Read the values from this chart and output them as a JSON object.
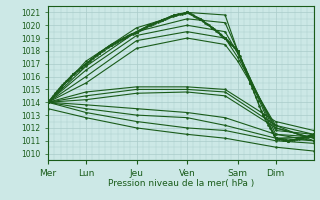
{
  "bg_color": "#cce8e6",
  "grid_color": "#aaccca",
  "line_color": "#1a5c1a",
  "ylabel_text": "Pression niveau de la mer( hPa )",
  "x_labels": [
    "Mer",
    "Lun",
    "Jeu",
    "Ven",
    "Sam",
    "Dim"
  ],
  "x_positions": [
    0,
    36,
    84,
    132,
    180,
    216
  ],
  "ylim": [
    1009.5,
    1021.5
  ],
  "yticks": [
    1010,
    1011,
    1012,
    1013,
    1014,
    1015,
    1016,
    1017,
    1018,
    1019,
    1020,
    1021
  ],
  "xlim": [
    0,
    252
  ],
  "lines": [
    {
      "x": [
        0,
        36,
        84,
        132,
        168,
        180,
        216,
        252
      ],
      "y": [
        1014.0,
        1017.2,
        1019.8,
        1021.0,
        1020.8,
        1018.0,
        1011.2,
        1011.3
      ]
    },
    {
      "x": [
        0,
        36,
        84,
        132,
        168,
        180,
        216,
        252
      ],
      "y": [
        1014.0,
        1016.8,
        1019.5,
        1020.5,
        1020.2,
        1018.0,
        1011.5,
        1011.0
      ]
    },
    {
      "x": [
        0,
        36,
        84,
        132,
        168,
        180,
        216,
        252
      ],
      "y": [
        1014.0,
        1016.5,
        1019.2,
        1020.0,
        1019.5,
        1017.8,
        1011.8,
        1011.5
      ]
    },
    {
      "x": [
        0,
        36,
        84,
        132,
        168,
        180,
        216,
        252
      ],
      "y": [
        1014.0,
        1016.0,
        1018.8,
        1019.5,
        1019.0,
        1017.5,
        1012.0,
        1011.2
      ]
    },
    {
      "x": [
        0,
        36,
        84,
        132,
        168,
        180,
        216,
        252
      ],
      "y": [
        1014.0,
        1015.5,
        1018.2,
        1019.0,
        1018.5,
        1017.2,
        1012.2,
        1011.0
      ]
    },
    {
      "x": [
        0,
        36,
        84,
        132,
        168,
        216,
        252
      ],
      "y": [
        1014.0,
        1014.8,
        1015.2,
        1015.2,
        1015.0,
        1012.5,
        1011.8
      ]
    },
    {
      "x": [
        0,
        36,
        84,
        132,
        168,
        216,
        252
      ],
      "y": [
        1014.0,
        1014.5,
        1015.0,
        1015.0,
        1014.8,
        1012.2,
        1011.5
      ]
    },
    {
      "x": [
        0,
        36,
        84,
        132,
        168,
        216,
        252
      ],
      "y": [
        1014.0,
        1014.2,
        1014.7,
        1014.8,
        1014.5,
        1012.0,
        1011.2
      ]
    },
    {
      "x": [
        0,
        36,
        84,
        132,
        168,
        216,
        252
      ],
      "y": [
        1014.0,
        1013.8,
        1013.5,
        1013.2,
        1012.8,
        1011.5,
        1011.3
      ]
    },
    {
      "x": [
        0,
        36,
        84,
        132,
        168,
        216,
        252
      ],
      "y": [
        1014.0,
        1013.5,
        1013.0,
        1012.8,
        1012.2,
        1011.2,
        1011.0
      ]
    },
    {
      "x": [
        0,
        36,
        84,
        132,
        168,
        216,
        252
      ],
      "y": [
        1014.0,
        1013.2,
        1012.5,
        1012.0,
        1011.8,
        1011.0,
        1010.8
      ]
    },
    {
      "x": [
        0,
        36,
        84,
        132,
        168,
        216,
        252
      ],
      "y": [
        1013.5,
        1012.8,
        1012.0,
        1011.5,
        1011.2,
        1010.5,
        1010.2
      ]
    }
  ],
  "dense_line": {
    "x": [
      0,
      12,
      24,
      36,
      48,
      60,
      72,
      84,
      96,
      108,
      120,
      132,
      144,
      156,
      168,
      180,
      192,
      204,
      216,
      228,
      240,
      252
    ],
    "y": [
      1014.0,
      1015.2,
      1016.2,
      1017.0,
      1017.8,
      1018.5,
      1019.0,
      1019.5,
      1020.0,
      1020.4,
      1020.8,
      1021.0,
      1020.5,
      1019.8,
      1019.0,
      1018.0,
      1015.5,
      1013.0,
      1011.2,
      1011.0,
      1011.2,
      1011.5
    ]
  }
}
